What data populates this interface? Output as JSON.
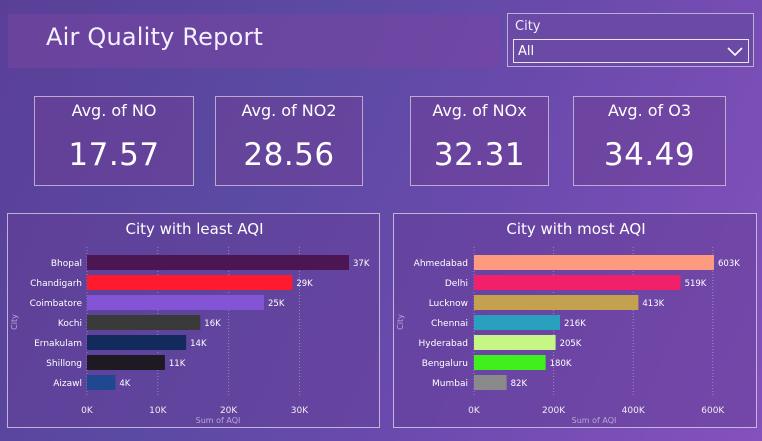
{
  "header": {
    "title": "Air Quality Report"
  },
  "slicer": {
    "label": "City",
    "selected": "All"
  },
  "kpis": [
    {
      "title": "Avg. of NO",
      "value": "17.57"
    },
    {
      "title": "Avg. of NO2",
      "value": "28.56"
    },
    {
      "title": "Avg. of NOx",
      "value": "32.31"
    },
    {
      "title": "Avg. of O3",
      "value": "34.49"
    }
  ],
  "chart_data": [
    {
      "type": "bar",
      "orientation": "horizontal",
      "title": "City with least AQI",
      "xlabel": "Sum of AQI",
      "ylabel": "City",
      "categories": [
        "Bhopal",
        "Chandigarh",
        "Coimbatore",
        "Kochi",
        "Ernakulam",
        "Shillong",
        "Aizawl"
      ],
      "values": [
        37000,
        29000,
        25000,
        16000,
        14000,
        11000,
        4000
      ],
      "data_labels": [
        "37K",
        "29K",
        "25K",
        "16K",
        "14K",
        "11K",
        "4K"
      ],
      "colors": [
        "#4b1652",
        "#ff1a2e",
        "#8355d6",
        "#3a3a3a",
        "#122a5c",
        "#1e1a24",
        "#1f4890"
      ],
      "xlim": [
        0,
        37000
      ],
      "ticks": [
        0,
        10000,
        20000,
        30000
      ],
      "tick_labels": [
        "0K",
        "10K",
        "20K",
        "30K"
      ],
      "grid": true
    },
    {
      "type": "bar",
      "orientation": "horizontal",
      "title": "City with most AQI",
      "xlabel": "Sum of AQI",
      "ylabel": "City",
      "categories": [
        "Ahmedabad",
        "Delhi",
        "Lucknow",
        "Chennai",
        "Hyderabad",
        "Bengaluru",
        "Mumbai"
      ],
      "values": [
        603000,
        519000,
        413000,
        216000,
        205000,
        180000,
        82000
      ],
      "data_labels": [
        "603K",
        "519K",
        "413K",
        "216K",
        "205K",
        "180K",
        "82K"
      ],
      "colors": [
        "#fe9a80",
        "#f21f6a",
        "#c3a14e",
        "#2aa0bf",
        "#c6f685",
        "#3ff01d",
        "#8a8a8a"
      ],
      "xlim": [
        0,
        603000
      ],
      "ticks": [
        0,
        200000,
        400000,
        600000
      ],
      "tick_labels": [
        "0K",
        "200K",
        "400K",
        "600K"
      ],
      "grid": true
    }
  ]
}
